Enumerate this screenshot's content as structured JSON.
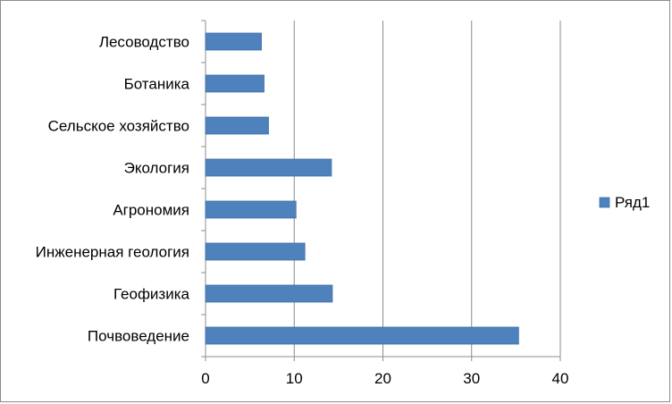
{
  "chart_data": {
    "type": "bar",
    "orientation": "horizontal",
    "categories": [
      "Лесоводство",
      "Ботаника",
      "Сельское хозяйство",
      "Экология",
      "Агрономия",
      "Инженерная геология",
      "Геофизика",
      "Почвоведение"
    ],
    "series": [
      {
        "name": "Ряд1",
        "values": [
          6.3,
          6.6,
          7.1,
          14.2,
          10.2,
          11.2,
          14.3,
          35.3
        ]
      }
    ],
    "xlim": [
      0,
      40
    ],
    "xticks": [
      "0",
      "10",
      "20",
      "30",
      "40"
    ],
    "grid": "vertical",
    "legend_position": "right",
    "colors": {
      "bar": "#4f81bd",
      "bar_edge": "#3f6fa8",
      "grid": "#8c8c8c",
      "axis": "#8c8c8c"
    }
  }
}
